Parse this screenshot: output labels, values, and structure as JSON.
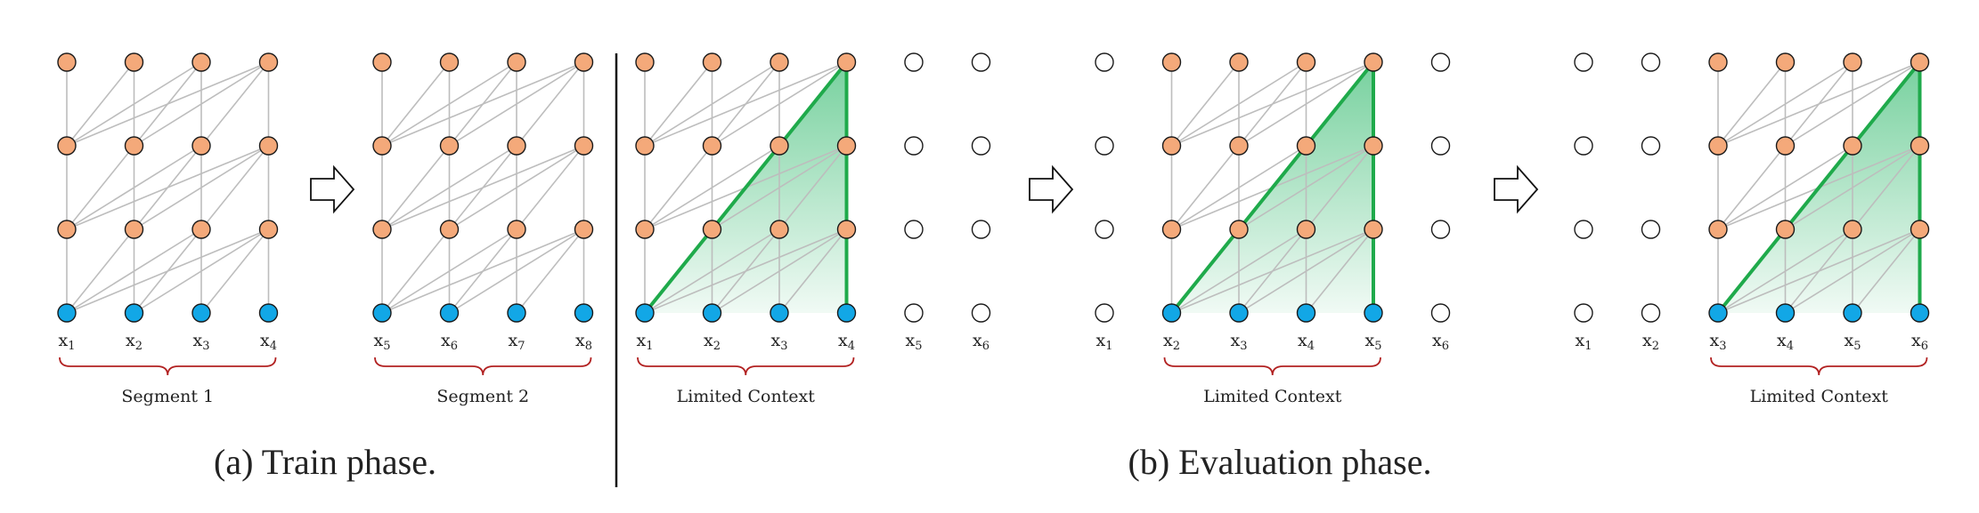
{
  "colors": {
    "hidden_node": "#F4A97A",
    "input_node": "#12A7E6",
    "empty_node": "#FFFFFF",
    "node_stroke": "#1a1a1a",
    "edge": "#BDBDBD",
    "context_line": "#1FAA4B",
    "context_fill": "#2EB86A",
    "brace": "#B22222"
  },
  "icons": [
    "right-arrow-icon"
  ],
  "train": {
    "caption": "(a) Train phase.",
    "segments": [
      {
        "label": "Segment 1",
        "tokens": [
          "x1",
          "x2",
          "x3",
          "x4"
        ]
      },
      {
        "label": "Segment 2",
        "tokens": [
          "x5",
          "x6",
          "x7",
          "x8"
        ]
      }
    ]
  },
  "evaluation": {
    "caption": "(b) Evaluation phase.",
    "steps": [
      {
        "label": "Limited Context",
        "tokens": [
          "x1",
          "x2",
          "x3",
          "x4",
          "x5",
          "x6"
        ],
        "context": [
          "x1",
          "x2",
          "x3",
          "x4"
        ]
      },
      {
        "label": "Limited Context",
        "tokens": [
          "x1",
          "x2",
          "x3",
          "x4",
          "x5",
          "x6"
        ],
        "context": [
          "x2",
          "x3",
          "x4",
          "x5"
        ]
      },
      {
        "label": "Limited Context",
        "tokens": [
          "x1",
          "x2",
          "x3",
          "x4",
          "x5",
          "x6"
        ],
        "context": [
          "x3",
          "x4",
          "x5",
          "x6"
        ]
      }
    ]
  }
}
